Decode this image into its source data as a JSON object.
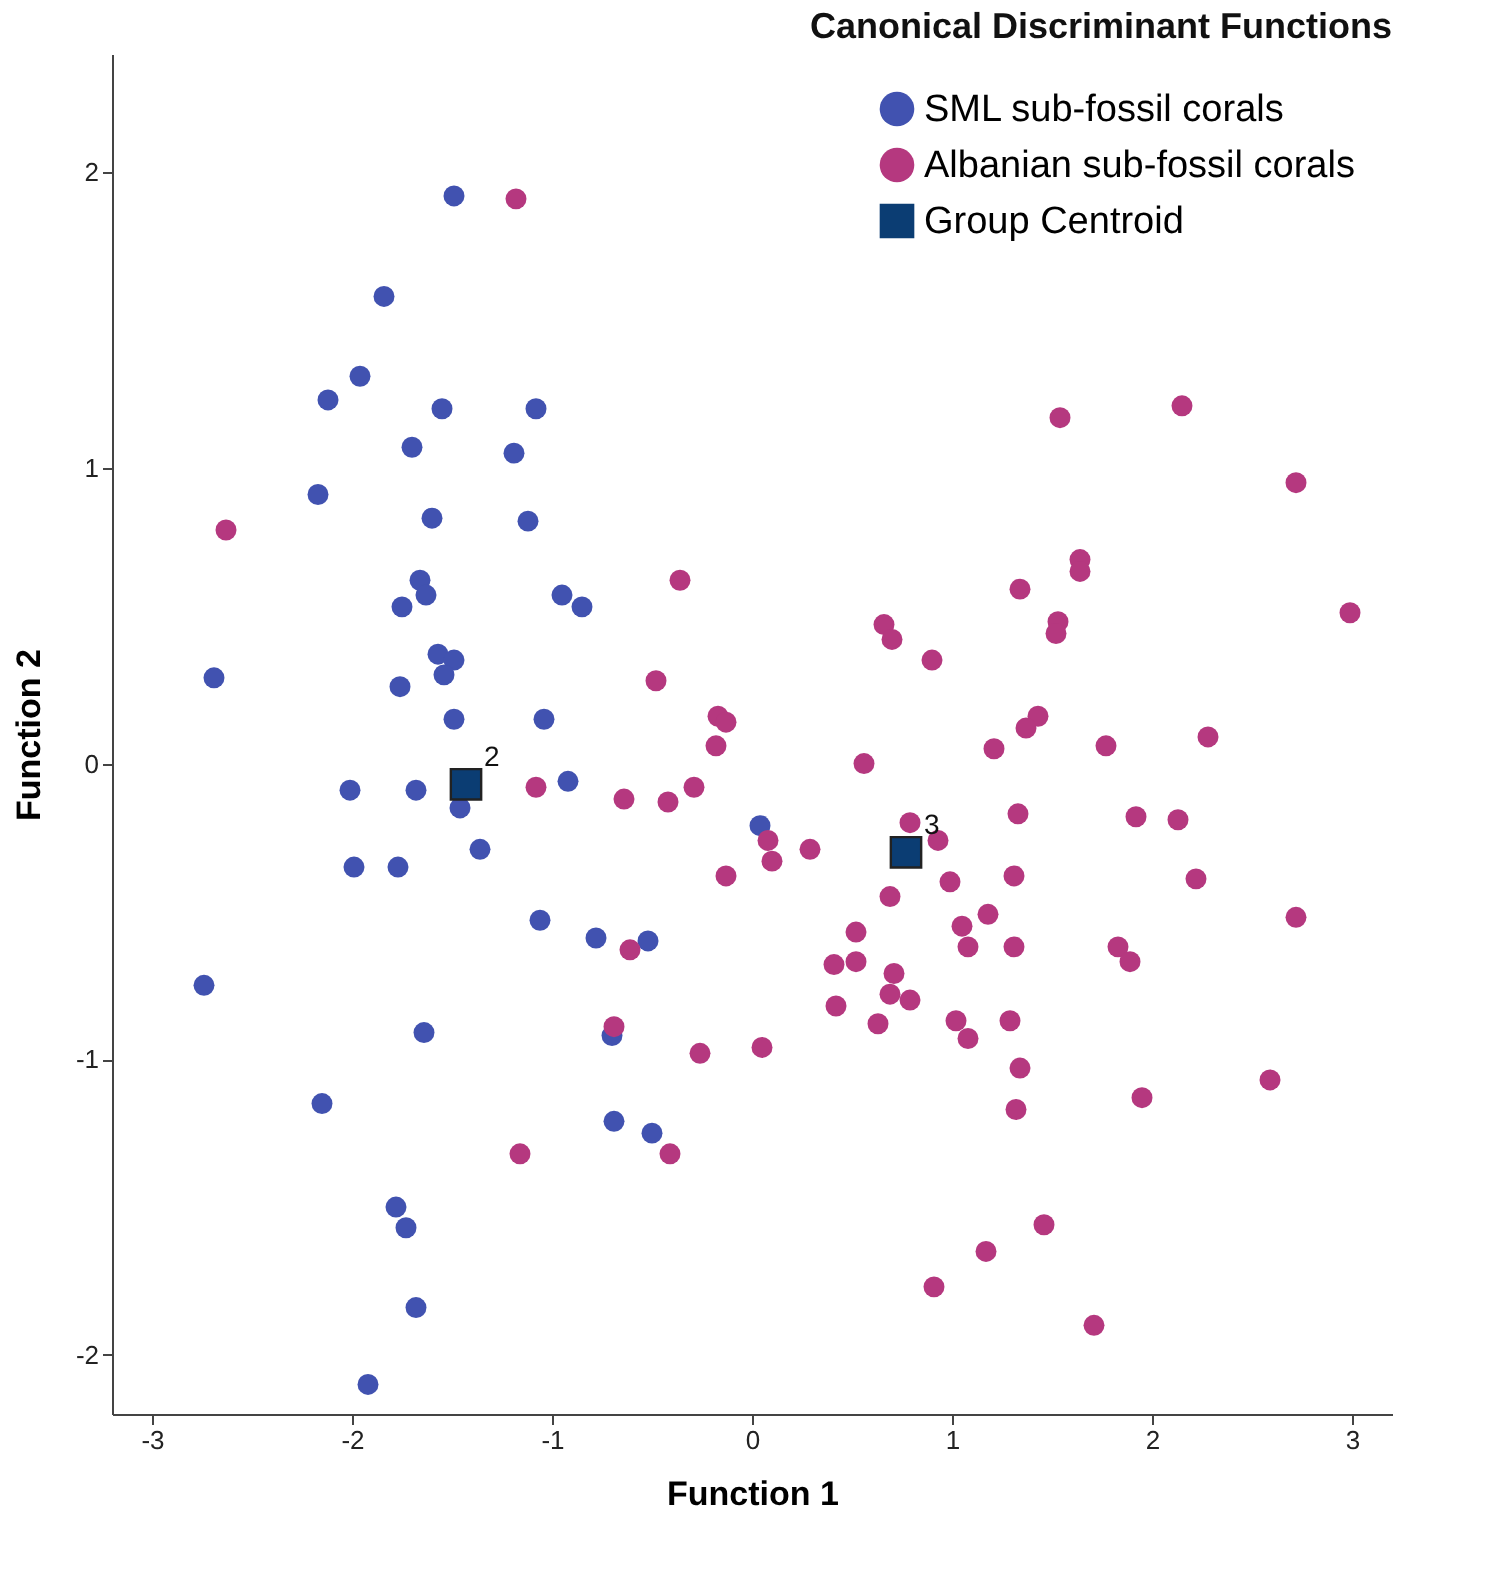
{
  "chart_data": {
    "type": "scatter",
    "title": "Canonical Discriminant Functions",
    "xlabel": "Function 1",
    "ylabel": "Function 2",
    "xlim": [
      -3.2,
      3.2
    ],
    "ylim": [
      -2.2,
      2.4
    ],
    "xticks": [
      -3,
      -2,
      -1,
      0,
      1,
      2,
      3
    ],
    "yticks": [
      -2,
      -1,
      0,
      1,
      2
    ],
    "grid": false,
    "legend": "top right",
    "series": [
      {
        "name": "SML sub-fossil corals",
        "color": "#4152b0",
        "marker": "circle",
        "x": [
          -1.49,
          -1.84,
          -1.96,
          -2.12,
          -1.55,
          -1.08,
          -1.7,
          -1.19,
          -2.17,
          -1.6,
          -1.12,
          -1.66,
          -1.63,
          -1.75,
          -0.95,
          -0.85,
          -2.69,
          -1.57,
          -1.49,
          -1.54,
          -1.76,
          -1.49,
          -1.04,
          -2.01,
          -1.68,
          -0.92,
          -1.46,
          -1.36,
          -1.99,
          -1.77,
          -1.06,
          -0.78,
          -0.52,
          -2.74,
          -0.7,
          -1.64,
          -2.15,
          -0.69,
          -0.5,
          -1.78,
          -1.73,
          -1.68,
          -1.92,
          0.04
        ],
        "values": [
          1.92,
          1.58,
          1.31,
          1.23,
          1.2,
          1.2,
          1.07,
          1.05,
          0.91,
          0.83,
          0.82,
          0.62,
          0.57,
          0.53,
          0.57,
          0.53,
          0.29,
          0.37,
          0.35,
          0.3,
          0.26,
          0.15,
          0.15,
          -0.09,
          -0.09,
          -0.06,
          -0.15,
          -0.29,
          -0.35,
          -0.35,
          -0.53,
          -0.59,
          -0.6,
          -0.75,
          -0.92,
          -0.91,
          -1.15,
          -1.21,
          -1.25,
          -1.5,
          -1.57,
          -1.84,
          -2.1,
          -0.21
        ]
      },
      {
        "name": "Albanian sub-fossil corals",
        "color": "#b5387f",
        "marker": "circle",
        "x": [
          -1.18,
          -2.63,
          -0.36,
          -1.08,
          -0.64,
          1.54,
          2.15,
          2.72,
          1.64,
          1.64,
          1.34,
          2.99,
          1.53,
          1.52,
          0.66,
          0.7,
          0.9,
          -0.48,
          -0.17,
          -0.13,
          -0.18,
          1.43,
          1.37,
          1.21,
          1.77,
          2.28,
          0.56,
          -0.29,
          -0.42,
          0.79,
          1.33,
          1.92,
          2.13,
          0.93,
          0.08,
          0.1,
          0.29,
          -0.13,
          0.99,
          1.31,
          2.22,
          0.69,
          1.18,
          1.05,
          2.72,
          0.52,
          1.08,
          1.31,
          1.83,
          1.89,
          0.41,
          0.52,
          0.71,
          0.69,
          0.79,
          0.42,
          0.63,
          1.02,
          1.08,
          1.29,
          1.34,
          -0.26,
          0.05,
          1.32,
          1.95,
          2.59,
          -0.41,
          1.46,
          1.17,
          0.91,
          1.71,
          -1.16,
          -0.69,
          -0.61
        ],
        "values": [
          1.91,
          0.79,
          0.62,
          -0.08,
          -0.12,
          1.17,
          1.21,
          0.95,
          0.69,
          0.65,
          0.59,
          0.51,
          0.48,
          0.44,
          0.47,
          0.42,
          0.35,
          0.28,
          0.16,
          0.14,
          0.06,
          0.16,
          0.12,
          0.05,
          0.06,
          0.09,
          0.0,
          -0.08,
          -0.13,
          -0.2,
          -0.17,
          -0.18,
          -0.19,
          -0.26,
          -0.26,
          -0.33,
          -0.29,
          -0.38,
          -0.4,
          -0.38,
          -0.39,
          -0.45,
          -0.51,
          -0.55,
          -0.52,
          -0.57,
          -0.62,
          -0.62,
          -0.62,
          -0.67,
          -0.68,
          -0.67,
          -0.71,
          -0.78,
          -0.8,
          -0.82,
          -0.88,
          -0.87,
          -0.93,
          -0.87,
          -1.03,
          -0.98,
          -0.96,
          -1.17,
          -1.13,
          -1.07,
          -1.32,
          -1.56,
          -1.65,
          -1.77,
          -1.9,
          -1.32,
          -0.89,
          -0.63
        ]
      },
      {
        "name": "Group Centroid",
        "color": "#0b3d73",
        "marker": "square",
        "x": [
          -1.43,
          0.77
        ],
        "values": [
          -0.07,
          -0.3
        ]
      }
    ],
    "annotations": [
      {
        "text": "2",
        "x": -1.43,
        "y": -0.07
      },
      {
        "text": "3",
        "x": 0.77,
        "y": -0.3
      }
    ]
  }
}
